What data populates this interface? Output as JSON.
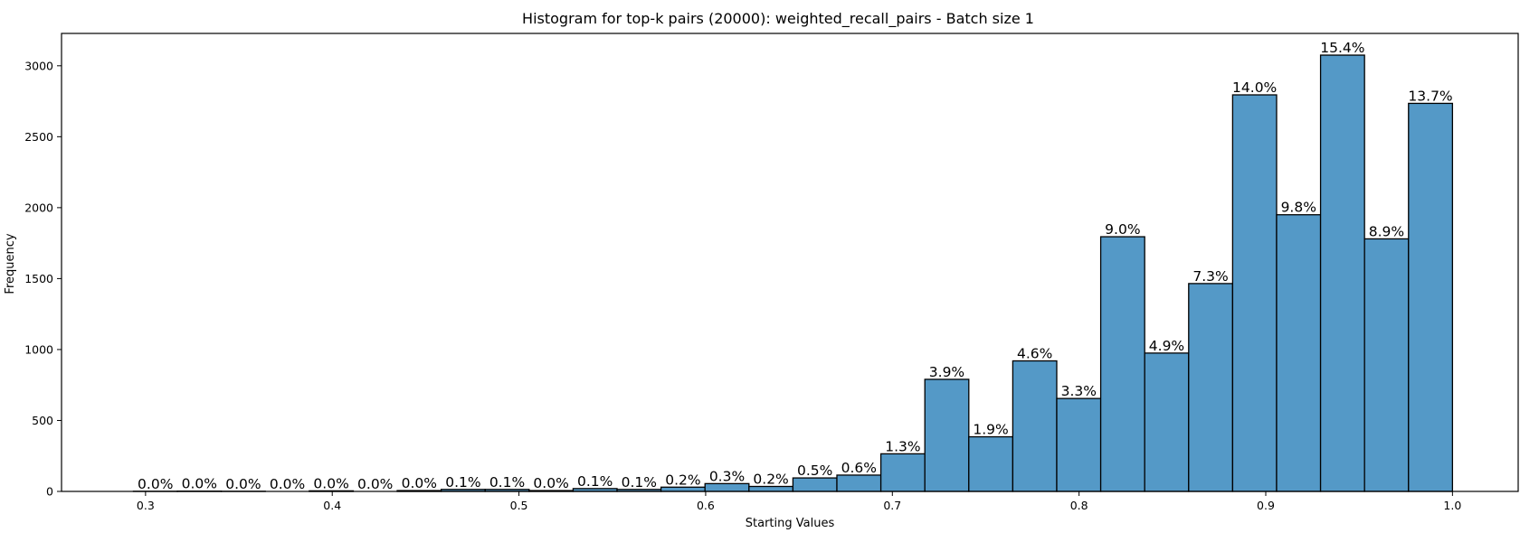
{
  "chart_data": {
    "type": "bar",
    "title": "Histogram for top-k pairs (20000): weighted_recall_pairs - Batch size 1",
    "xlabel": "Starting Values",
    "ylabel": "Frequency",
    "xlim": [
      0.255,
      1.0352
    ],
    "ylim": [
      0,
      3228
    ],
    "grid": false,
    "bin_start": 0.2935,
    "bin_width": 0.02355,
    "x_ticks": [
      0.3,
      0.4,
      0.5,
      0.6,
      0.7,
      0.8,
      0.9,
      1.0
    ],
    "x_tick_labels": [
      "0.3",
      "0.4",
      "0.5",
      "0.6",
      "0.7",
      "0.8",
      "0.9",
      "1.0"
    ],
    "y_ticks": [
      0,
      500,
      1000,
      1500,
      2000,
      2500,
      3000
    ],
    "y_tick_labels": [
      "0",
      "500",
      "1000",
      "1500",
      "2000",
      "2500",
      "3000"
    ],
    "values": [
      1,
      2,
      1,
      0,
      4,
      0,
      6,
      14,
      14,
      6,
      20,
      14,
      30,
      55,
      35,
      95,
      115,
      265,
      790,
      385,
      920,
      655,
      1795,
      975,
      1465,
      2795,
      1950,
      3075,
      1780,
      2735
    ],
    "labels": [
      "0.0%",
      "0.0%",
      "0.0%",
      "0.0%",
      "0.0%",
      "0.0%",
      "0.0%",
      "0.1%",
      "0.1%",
      "0.0%",
      "0.1%",
      "0.1%",
      "0.2%",
      "0.3%",
      "0.2%",
      "0.5%",
      "0.6%",
      "1.3%",
      "3.9%",
      "1.9%",
      "4.6%",
      "3.3%",
      "9.0%",
      "4.9%",
      "7.3%",
      "14.0%",
      "9.8%",
      "15.4%",
      "8.9%",
      "13.7%"
    ],
    "bar_color": "#5499c7",
    "edge_color": "#000000"
  }
}
